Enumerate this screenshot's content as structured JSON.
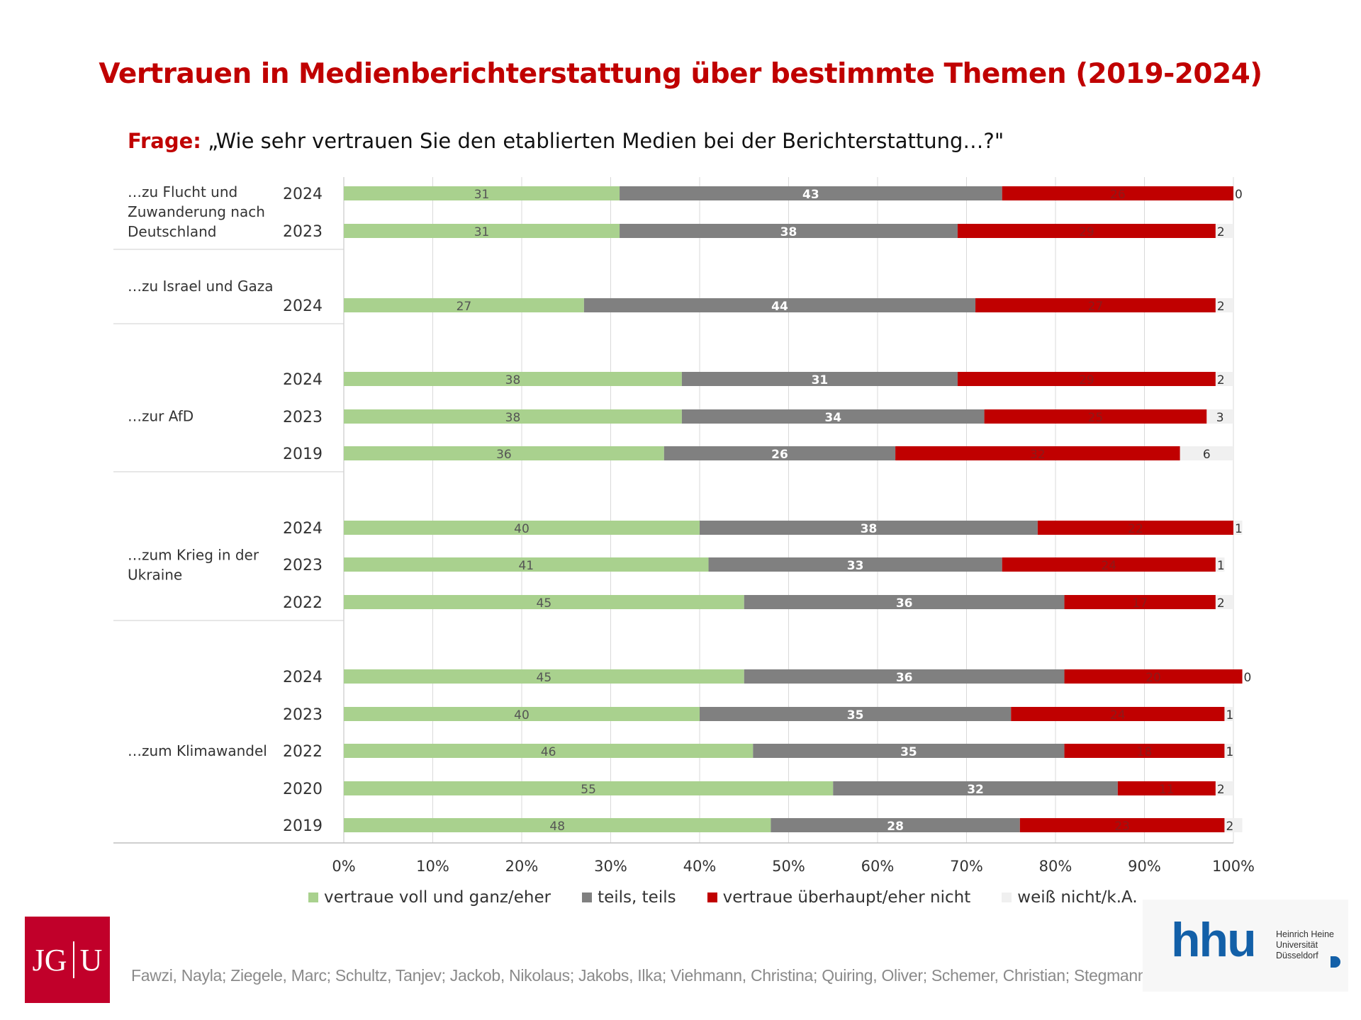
{
  "page_title": "Vertrauen in Medienberichterstattung über bestimmte Themen (2019-2024)",
  "question": {
    "label": "Frage:",
    "text": "„Wie sehr vertrauen Sie den etablierten Medien bei der Berichterstattung…?\""
  },
  "colors": {
    "trust": "#a9d18e",
    "partly": "#808080",
    "distrust": "#c00000",
    "dontknow": "#f0f0f0",
    "title": "#c00000"
  },
  "legend": [
    {
      "label": "vertraue voll und ganz/eher",
      "color": "#a9d18e"
    },
    {
      "label": "teils, teils",
      "color": "#808080"
    },
    {
      "label": "vertraue überhaupt/eher nicht",
      "color": "#c00000"
    },
    {
      "label": "weiß nicht/k.A.",
      "color": "#f0f0f0"
    }
  ],
  "chart_data": {
    "type": "bar",
    "orientation": "horizontal",
    "stacked": "100%",
    "xlim": [
      0,
      100
    ],
    "xticks": [
      "0%",
      "10%",
      "20%",
      "30%",
      "40%",
      "50%",
      "60%",
      "70%",
      "80%",
      "90%",
      "100%"
    ],
    "grid": true,
    "legend_position": "bottom",
    "series": [
      {
        "name": "vertraue voll und ganz/eher"
      },
      {
        "name": "teils, teils"
      },
      {
        "name": "vertraue überhaupt/eher nicht"
      },
      {
        "name": "weiß nicht/k.A."
      }
    ],
    "groups": [
      {
        "topic": "…zu Flucht und Zuwanderung nach Deutschland",
        "topic_lines": [
          "…zu Flucht und",
          "Zuwanderung nach",
          "Deutschland"
        ],
        "rows": [
          {
            "year": "2024",
            "values": [
              31,
              43,
              26,
              0
            ]
          },
          {
            "year": "2023",
            "values": [
              31,
              38,
              29,
              2
            ]
          }
        ]
      },
      {
        "topic": "…zu Israel und Gaza",
        "topic_lines": [
          "…zu Israel und Gaza"
        ],
        "rows": [
          {
            "year": "2024",
            "values": [
              27,
              44,
              27,
              2
            ]
          }
        ]
      },
      {
        "topic": "…zur AfD",
        "topic_lines": [
          "…zur AfD"
        ],
        "rows": [
          {
            "year": "2024",
            "values": [
              38,
              31,
              29,
              2
            ]
          },
          {
            "year": "2023",
            "values": [
              38,
              34,
              25,
              3
            ]
          },
          {
            "year": "2019",
            "values": [
              36,
              26,
              32,
              6
            ]
          }
        ]
      },
      {
        "topic": "…zum Krieg in der Ukraine",
        "topic_lines": [
          "…zum Krieg in der",
          "Ukraine"
        ],
        "rows": [
          {
            "year": "2024",
            "values": [
              40,
              38,
              22,
              1
            ]
          },
          {
            "year": "2023",
            "values": [
              41,
              33,
              24,
              1
            ]
          },
          {
            "year": "2022",
            "values": [
              45,
              36,
              17,
              2
            ]
          }
        ]
      },
      {
        "topic": "…zum Klimawandel",
        "topic_lines": [
          "…zum Klimawandel"
        ],
        "rows": [
          {
            "year": "2024",
            "values": [
              45,
              36,
              20,
              0
            ]
          },
          {
            "year": "2023",
            "values": [
              40,
              35,
              24,
              1
            ]
          },
          {
            "year": "2022",
            "values": [
              46,
              35,
              18,
              1
            ]
          },
          {
            "year": "2020",
            "values": [
              55,
              32,
              11,
              2
            ]
          },
          {
            "year": "2019",
            "values": [
              48,
              28,
              23,
              2
            ]
          }
        ]
      }
    ]
  },
  "footer": {
    "jgu_logo": {
      "left": "JG",
      "right": "U"
    },
    "authors": "Fawzi, Nayla; Ziegele, Marc; Schultz, Tanjev; Jackob, Nikolaus; Jakobs, Ilka; Viehmann, Christina; Quiring, Oliver; Schemer, Christian; Stegmann, Daniel",
    "hhu_logo": {
      "letters": "hhu",
      "sub": [
        "Heinrich Heine",
        "Universität",
        "Düsseldorf"
      ]
    }
  }
}
